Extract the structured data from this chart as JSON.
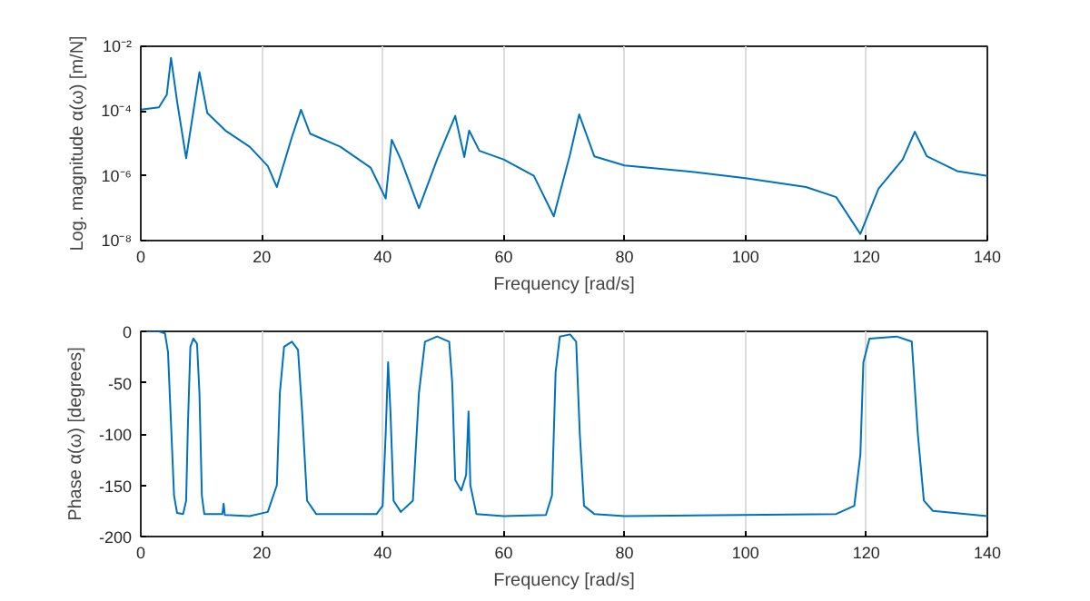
{
  "chart_data": [
    {
      "type": "line",
      "xlabel": "Frequency [rad/s]",
      "ylabel": "Log. magnitude α(ω) [m/N]",
      "log": "y",
      "grid": "x",
      "xlim": [
        0,
        140
      ],
      "xticks": [
        0,
        20,
        40,
        60,
        80,
        100,
        120,
        140
      ],
      "ylim": [
        1e-08,
        0.01
      ],
      "yticks": [
        {
          "value": 1e-08,
          "label": "10⁻⁸"
        },
        {
          "value": 1e-06,
          "label": "10⁻⁶"
        },
        {
          "value": 0.0001,
          "label": "10⁻⁴"
        },
        {
          "value": 0.01,
          "label": "10⁻²"
        }
      ],
      "series": [
        {
          "color": "#0072bd",
          "x": [
            0,
            3,
            4.3,
            5,
            6,
            7.5,
            9.7,
            11,
            14,
            18,
            21,
            22.5,
            25,
            26.5,
            28,
            33,
            38,
            40.5,
            41.5,
            43,
            46,
            49,
            52,
            53.5,
            54.3,
            56,
            60,
            65,
            68.3,
            71,
            72.5,
            75,
            80,
            90,
            100,
            110,
            115,
            119,
            122,
            126,
            128,
            130,
            135,
            140
          ],
          "values": [
            0.00011,
            0.00013,
            0.00032,
            0.0044,
            0.0002,
            3.5e-06,
            0.0016,
            8.7e-05,
            2.5e-05,
            7.9e-06,
            2e-06,
            4.5e-07,
            1.6e-05,
            0.00011,
            2e-05,
            7.9e-06,
            1.8e-06,
            2e-07,
            1.3e-05,
            3.2e-06,
            1e-07,
            3.2e-06,
            7.1e-05,
            3.8e-06,
            2.5e-05,
            5.9e-06,
            3.2e-06,
            1e-06,
            5.6e-08,
            4.7e-06,
            7.9e-05,
            4e-06,
            2.1e-06,
            1.4e-06,
            8.5e-07,
            4.5e-07,
            2.2e-07,
            1.6e-08,
            4e-07,
            3.2e-06,
            2.3e-05,
            4e-06,
            1.4e-06,
            1e-06
          ]
        }
      ]
    },
    {
      "type": "line",
      "xlabel": "Frequency [rad/s]",
      "ylabel": "Phase α(ω) [degrees]",
      "grid": "x",
      "xlim": [
        0,
        140
      ],
      "xticks": [
        0,
        20,
        40,
        60,
        80,
        100,
        120,
        140
      ],
      "ylim": [
        -200,
        0
      ],
      "yticks": [
        -200,
        -150,
        -100,
        -50,
        0
      ],
      "series": [
        {
          "color": "#0072bd",
          "x": [
            0,
            3,
            4,
            4.5,
            5,
            5.5,
            6,
            7,
            7.5,
            7.8,
            8.2,
            8.7,
            9.3,
            9.7,
            10.1,
            10.5,
            13.5,
            13.7,
            13.9,
            18,
            21,
            22.5,
            23,
            23.7,
            25,
            26,
            26.7,
            27.5,
            29,
            39,
            40,
            40.5,
            40.9,
            41.3,
            41.8,
            43,
            45,
            46,
            47,
            49,
            51,
            51.5,
            52,
            53,
            53.8,
            54.2,
            54.5,
            55.5,
            60,
            67,
            68,
            68.6,
            69.3,
            71,
            72,
            72.6,
            73.3,
            75,
            80,
            115,
            118,
            119,
            119.5,
            120.5,
            125,
            127.5,
            128.5,
            129.5,
            131,
            140
          ],
          "values": [
            0,
            0,
            -2,
            -20,
            -90,
            -160,
            -177,
            -178,
            -165,
            -90,
            -15,
            -7,
            -12,
            -60,
            -160,
            -178,
            -178,
            -168,
            -179,
            -180,
            -176,
            -150,
            -60,
            -15,
            -10,
            -18,
            -80,
            -165,
            -178,
            -178,
            -170,
            -100,
            -30,
            -80,
            -165,
            -176,
            -165,
            -60,
            -10,
            -5,
            -10,
            -50,
            -145,
            -155,
            -140,
            -78,
            -150,
            -178,
            -180,
            -179,
            -160,
            -40,
            -5,
            -3,
            -10,
            -100,
            -170,
            -178,
            -180,
            -178,
            -170,
            -120,
            -30,
            -7,
            -5,
            -10,
            -100,
            -165,
            -175,
            -180
          ]
        }
      ]
    }
  ]
}
